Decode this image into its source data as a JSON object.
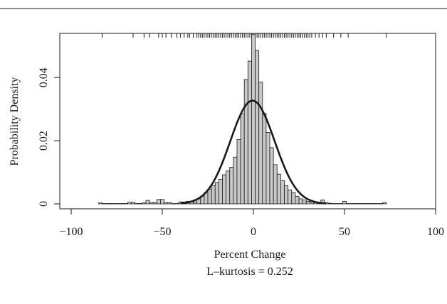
{
  "chart_data": {
    "type": "bar",
    "xlabel": "Percent Change",
    "ylabel": "Probability Density",
    "annotation": "L–kurtosis = 0.252",
    "xlim": [
      -105,
      105
    ],
    "ylim": [
      0,
      0.054
    ],
    "x_ticks": [
      -100,
      -50,
      0,
      50,
      100
    ],
    "x_tick_labels": [
      "−100",
      "−50",
      "0",
      "50",
      "100"
    ],
    "y_ticks": [
      0,
      0.02,
      0.04
    ],
    "y_tick_labels": [
      "0",
      "0.02",
      "0.04"
    ],
    "bin_width": 2,
    "bins": [
      {
        "x": -84,
        "y": 0.0003
      },
      {
        "x": -82,
        "y": 0.0001
      },
      {
        "x": -80,
        "y": 0.0001
      },
      {
        "x": -78,
        "y": 0.0001
      },
      {
        "x": -76,
        "y": 0.0001
      },
      {
        "x": -74,
        "y": 0.0001
      },
      {
        "x": -72,
        "y": 0.0001
      },
      {
        "x": -70,
        "y": 0.0001
      },
      {
        "x": -68,
        "y": 0.0005
      },
      {
        "x": -66,
        "y": 0.0005
      },
      {
        "x": -64,
        "y": 0.0001
      },
      {
        "x": -62,
        "y": 0.0001
      },
      {
        "x": -60,
        "y": 0.0003
      },
      {
        "x": -58,
        "y": 0.0011
      },
      {
        "x": -56,
        "y": 0.0004
      },
      {
        "x": -54,
        "y": 0.0004
      },
      {
        "x": -52,
        "y": 0.0014
      },
      {
        "x": -50,
        "y": 0.0014
      },
      {
        "x": -48,
        "y": 0.0004
      },
      {
        "x": -46,
        "y": 0.0004
      },
      {
        "x": -44,
        "y": 0.0001
      },
      {
        "x": -42,
        "y": 0.0001
      },
      {
        "x": -40,
        "y": 0.0006
      },
      {
        "x": -38,
        "y": 0.0006
      },
      {
        "x": -36,
        "y": 0.0008
      },
      {
        "x": -34,
        "y": 0.0008
      },
      {
        "x": -32,
        "y": 0.0006
      },
      {
        "x": -30,
        "y": 0.0016
      },
      {
        "x": -28,
        "y": 0.0024
      },
      {
        "x": -26,
        "y": 0.0036
      },
      {
        "x": -24,
        "y": 0.0046
      },
      {
        "x": -22,
        "y": 0.0058
      },
      {
        "x": -20,
        "y": 0.0068
      },
      {
        "x": -18,
        "y": 0.0078
      },
      {
        "x": -16,
        "y": 0.0092
      },
      {
        "x": -14,
        "y": 0.0104
      },
      {
        "x": -12,
        "y": 0.0116
      },
      {
        "x": -10,
        "y": 0.0148
      },
      {
        "x": -8,
        "y": 0.0204
      },
      {
        "x": -6,
        "y": 0.0286
      },
      {
        "x": -4,
        "y": 0.0394
      },
      {
        "x": -2,
        "y": 0.0452
      },
      {
        "x": 0,
        "y": 0.0536
      },
      {
        "x": 2,
        "y": 0.0486
      },
      {
        "x": 4,
        "y": 0.0386
      },
      {
        "x": 6,
        "y": 0.0286
      },
      {
        "x": 8,
        "y": 0.0226
      },
      {
        "x": 10,
        "y": 0.0178
      },
      {
        "x": 12,
        "y": 0.0124
      },
      {
        "x": 14,
        "y": 0.0094
      },
      {
        "x": 16,
        "y": 0.0074
      },
      {
        "x": 18,
        "y": 0.0058
      },
      {
        "x": 20,
        "y": 0.0044
      },
      {
        "x": 22,
        "y": 0.0036
      },
      {
        "x": 24,
        "y": 0.0024
      },
      {
        "x": 26,
        "y": 0.0016
      },
      {
        "x": 28,
        "y": 0.0012
      },
      {
        "x": 30,
        "y": 0.0008
      },
      {
        "x": 32,
        "y": 0.0006
      },
      {
        "x": 34,
        "y": 0.0004
      },
      {
        "x": 36,
        "y": 0.0004
      },
      {
        "x": 38,
        "y": 0.0012
      },
      {
        "x": 40,
        "y": 0.0004
      },
      {
        "x": 42,
        "y": 0.0002
      },
      {
        "x": 44,
        "y": 0.0001
      },
      {
        "x": 46,
        "y": 0.0001
      },
      {
        "x": 48,
        "y": 0.0001
      },
      {
        "x": 50,
        "y": 0.0008
      },
      {
        "x": 52,
        "y": 0.0001
      },
      {
        "x": 54,
        "y": 0.0001
      },
      {
        "x": 56,
        "y": 0.0001
      },
      {
        "x": 58,
        "y": 0.0001
      },
      {
        "x": 60,
        "y": 0.0001
      },
      {
        "x": 62,
        "y": 0.0001
      },
      {
        "x": 64,
        "y": 0.0001
      },
      {
        "x": 66,
        "y": 0.0001
      },
      {
        "x": 68,
        "y": 0.0001
      },
      {
        "x": 70,
        "y": 0.0001
      },
      {
        "x": 72,
        "y": 0.0004
      }
    ],
    "density_curve": {
      "distribution": "normal",
      "mean": -0.5,
      "sd": 12.2
    },
    "rug_values": [
      -83,
      -66,
      -60,
      -57,
      -52,
      -50,
      -48,
      -45,
      -42,
      -40,
      -38,
      -36,
      -35,
      -33,
      -31,
      -30,
      -29,
      -28,
      -27,
      -26,
      -25,
      -24,
      -23,
      -22,
      -21,
      -20,
      -19,
      -18,
      -17,
      -16,
      -15,
      -14,
      -13,
      -12,
      -11,
      -10,
      -9,
      -8,
      -7,
      -6,
      -5,
      -4,
      -3,
      -2,
      -1,
      0,
      1,
      2,
      3,
      4,
      5,
      6,
      7,
      8,
      9,
      10,
      11,
      12,
      13,
      14,
      15,
      16,
      17,
      18,
      19,
      20,
      21,
      22,
      23,
      24,
      25,
      26,
      27,
      28,
      29,
      30,
      31,
      32,
      34,
      36,
      38,
      40,
      44,
      48,
      52,
      73
    ],
    "colors": {
      "bar_fill": "#c8c8c8",
      "bar_stroke": "#1a1a1a",
      "curve": "#1a1a1a",
      "axis": "#1a1a1a"
    }
  }
}
